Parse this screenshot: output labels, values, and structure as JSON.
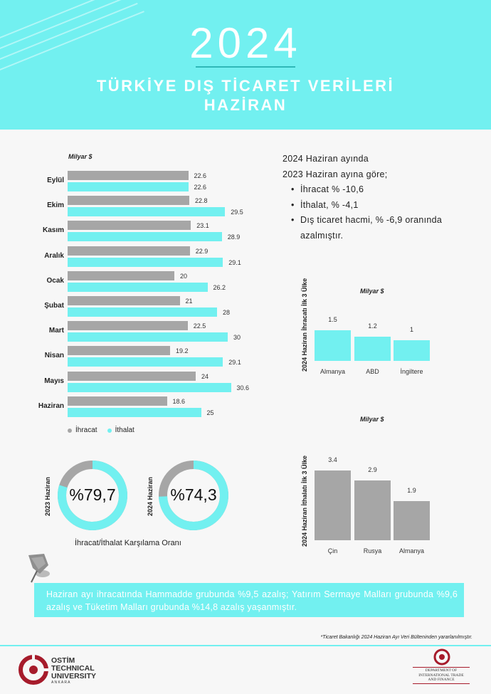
{
  "header": {
    "year": "2024",
    "title_line1": "TÜRKİYE DIŞ TİCARET VERİLERİ",
    "title_line2": "HAZİRAN"
  },
  "monthly_chart": {
    "unit": "Milyar $",
    "legend": {
      "export": "İhracat",
      "import": "İthalat"
    }
  },
  "summary": {
    "line1": "2024  Haziran ayında",
    "line2": "2023  Haziran ayına göre;",
    "bullets": [
      "İhracat % -10,6",
      "İthalat, % -4,1",
      "Dış ticaret hacmi, % -6,9 oranında",
      "azalmıştır."
    ]
  },
  "export_countries": {
    "side_label": "2024 Haziran İhracatı İlk 3 Ülke",
    "unit": "Milyar $"
  },
  "import_countries": {
    "side_label": "2024 Haziran İthalatı İlk 3 Ülke",
    "unit": "Milyar $"
  },
  "coverage": {
    "label_2023": "2023 Haziran",
    "value_2023": "%79,7",
    "label_2024": "2024 Haziran",
    "value_2024": "%74,3",
    "caption": "İhracat/İthalat Karşılama Oranı"
  },
  "note": {
    "text": "Haziran ayı ihracatında Hammadde grubunda %9,5 azalış; Yatırım Sermaye Malları grubunda %9,6 azalış ve Tüketim Malları grubunda %14,8 azalış yaşanmıştır."
  },
  "footer": {
    "source": "*Ticaret Bakanlığı 2024 Haziran Ayı Veri Bülteninden yararlanılmıştır.",
    "uni_line1": "OSTİM",
    "uni_line2": "TECHNICAL",
    "uni_line3": "UNIVERSITY",
    "uni_line4": "A N K A R A",
    "dept_line1": "DEPARTMENT OF",
    "dept_line2": "INTERNATIONAL TRADE",
    "dept_line3": "AND FINANCE"
  },
  "colors": {
    "accent": "#72f0f0",
    "gray": "#a6a6a6",
    "white": "#ffffff"
  },
  "chart_data": [
    {
      "type": "bar",
      "orientation": "horizontal",
      "categories": [
        "Eylül",
        "Ekim",
        "Kasım",
        "Aralık",
        "Ocak",
        "Şubat",
        "Mart",
        "Nisan",
        "Mayıs",
        "Haziran"
      ],
      "series": [
        {
          "name": "İhracat",
          "values": [
            22.6,
            22.8,
            23.1,
            22.9,
            20,
            21,
            22.5,
            19.2,
            24,
            18.6
          ],
          "color": "#a6a6a6"
        },
        {
          "name": "İthalat",
          "values": [
            22.6,
            29.5,
            28.9,
            29.1,
            26.2,
            28,
            30,
            29.1,
            30.6,
            25
          ],
          "color": "#72f0f0"
        }
      ],
      "value_labels": {
        "export": [
          "22.6",
          "22.8",
          "23.1",
          "22.9",
          "20",
          "21",
          "22.5",
          "19.2",
          "24",
          "18.6"
        ],
        "import": [
          "22.6",
          "29.5",
          "28.9",
          "29.1",
          "26.2",
          "28",
          "30",
          "29.1",
          "30.6",
          "25"
        ]
      },
      "title": "",
      "xlabel": "",
      "ylabel": "Milyar $",
      "xlim": [
        0,
        32
      ],
      "grid": false,
      "legend": "bottom-left"
    },
    {
      "type": "bar",
      "categories": [
        "Almanya",
        "ABD",
        "İngiltere"
      ],
      "values": [
        1.5,
        1.2,
        1
      ],
      "value_labels": [
        "1.5",
        "1.2",
        "1"
      ],
      "color": "#72f0f0",
      "title": "",
      "ylabel": "Milyar $",
      "ylim": [
        0,
        1.6
      ]
    },
    {
      "type": "bar",
      "categories": [
        "Çin",
        "Rusya",
        "Almanya"
      ],
      "values": [
        3.4,
        2.9,
        1.9
      ],
      "value_labels": [
        "3.4",
        "2.9",
        "1.9"
      ],
      "color": "#a6a6a6",
      "title": "",
      "ylabel": "Milyar $",
      "ylim": [
        0,
        3.6
      ]
    },
    {
      "type": "pie",
      "style": "donut",
      "categories": [
        "2023 Haziran"
      ],
      "values": [
        79.7
      ],
      "color": "#72f0f0"
    },
    {
      "type": "pie",
      "style": "donut",
      "categories": [
        "2024 Haziran"
      ],
      "values": [
        74.3
      ],
      "color": "#72f0f0"
    }
  ]
}
